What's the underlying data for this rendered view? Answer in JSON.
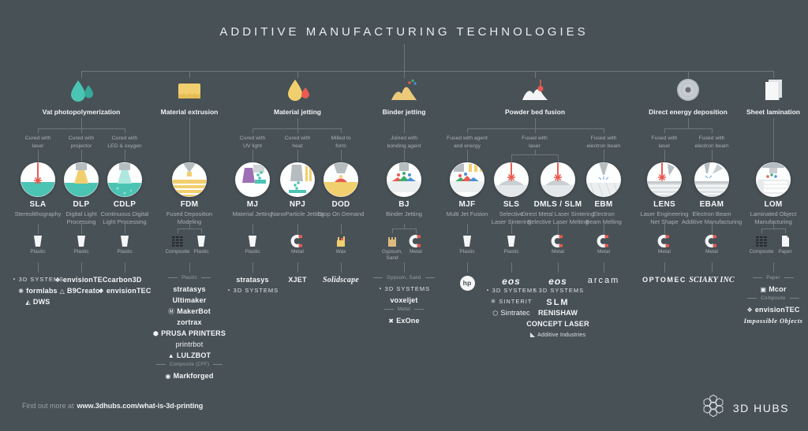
{
  "title": "ADDITIVE MANUFACTURING TECHNOLOGIES",
  "footer": {
    "prefix": "Find out more at",
    "url": "www.3dhubs.com/what-is-3d-printing",
    "brand": "3D HUBS"
  },
  "colors": {
    "background": "#485156",
    "line": "#6f777d",
    "teal": "#4cc4b4",
    "yellow": "#f2cf6e",
    "red": "#ea5a50",
    "purple": "#9d6fb5",
    "gray": "#b6bdc1",
    "white": "#fdfefe",
    "muted_text": "#a9b0b5"
  },
  "categories": [
    {
      "name": "Vat photopolymerization",
      "icon": "vat-drops",
      "branches": [
        {
          "method": "Cured with\nlaser",
          "processes": [
            {
              "abbr": "SLA",
              "full": "Stereolithography",
              "icon": "sla",
              "materials": [
                {
                  "name": "Plastic",
                  "icon": "plastic"
                }
              ],
              "brand_groups": [
                {
                  "label": null,
                  "brands": [
                    {
                      "name": "3D SYSTEMS",
                      "glyph": "◔",
                      "style": "thin"
                    },
                    {
                      "name": "formlabs",
                      "glyph": "❋"
                    },
                    {
                      "name": "DWS",
                      "glyph": "◭"
                    }
                  ]
                }
              ]
            }
          ]
        },
        {
          "method": "Cured with\nprojector",
          "processes": [
            {
              "abbr": "DLP",
              "full": "Digital Light\nProcessing",
              "icon": "dlp",
              "materials": [
                {
                  "name": "Plastic",
                  "icon": "plastic"
                }
              ],
              "brand_groups": [
                {
                  "label": null,
                  "brands": [
                    {
                      "name": "envisionTEC",
                      "glyph": "❖"
                    },
                    {
                      "name": "B9Creator",
                      "glyph": "△"
                    }
                  ]
                }
              ]
            }
          ]
        },
        {
          "method": "Cured with\nLED & oxygen",
          "processes": [
            {
              "abbr": "CDLP",
              "full": "Continuous Digital\nLight Processing",
              "icon": "cdlp",
              "materials": [
                {
                  "name": "Plastic",
                  "icon": "plastic"
                }
              ],
              "brand_groups": [
                {
                  "label": null,
                  "brands": [
                    {
                      "name": "carbon3D"
                    },
                    {
                      "name": "envisionTEC",
                      "glyph": "❖"
                    }
                  ]
                }
              ]
            }
          ]
        }
      ]
    },
    {
      "name": "Material extrusion",
      "icon": "extrusion-block",
      "branches": [
        {
          "method": null,
          "processes": [
            {
              "abbr": "FDM",
              "full": "Fused Deposition\nModeling",
              "icon": "fdm",
              "materials": [
                {
                  "name": "Composite",
                  "icon": "composite"
                },
                {
                  "name": "Plastic",
                  "icon": "plastic"
                }
              ],
              "brand_groups": [
                {
                  "label": "Plastic",
                  "brands": [
                    {
                      "name": "stratasys"
                    },
                    {
                      "name": "Ultimaker"
                    },
                    {
                      "name": "MakerBot",
                      "glyph": "Ⓜ"
                    },
                    {
                      "name": "zortrax"
                    },
                    {
                      "name": "PRUSA PRINTERS",
                      "glyph": "⬢"
                    },
                    {
                      "name": "printrbot",
                      "style": "light"
                    },
                    {
                      "name": "LULZBOT",
                      "glyph": "▲"
                    }
                  ]
                },
                {
                  "label": "Composite (CFF)",
                  "brands": [
                    {
                      "name": "Markforged",
                      "glyph": "◉"
                    }
                  ]
                }
              ]
            }
          ]
        }
      ]
    },
    {
      "name": "Material jetting",
      "icon": "jetting-drops",
      "branches": [
        {
          "method": "Cured with\nUV light",
          "processes": [
            {
              "abbr": "MJ",
              "full": "Material Jetting",
              "icon": "mj",
              "materials": [
                {
                  "name": "Plastic",
                  "icon": "plastic"
                }
              ],
              "brand_groups": [
                {
                  "label": null,
                  "brands": [
                    {
                      "name": "stratasys"
                    },
                    {
                      "name": "3D SYSTEMS",
                      "glyph": "◔",
                      "style": "thin"
                    }
                  ]
                }
              ]
            }
          ]
        },
        {
          "method": "Cured with\nheat",
          "processes": [
            {
              "abbr": "NPJ",
              "full": "NanoParticle Jetting",
              "icon": "npj",
              "materials": [
                {
                  "name": "Metal",
                  "icon": "metal"
                }
              ],
              "brand_groups": [
                {
                  "label": null,
                  "brands": [
                    {
                      "name": "XJET"
                    }
                  ]
                }
              ]
            }
          ]
        },
        {
          "method": "Milled to\nform",
          "processes": [
            {
              "abbr": "DOD",
              "full": "Drop On Demand",
              "icon": "dod",
              "materials": [
                {
                  "name": "Wax",
                  "icon": "wax"
                }
              ],
              "brand_groups": [
                {
                  "label": null,
                  "brands": [
                    {
                      "name": "Solidscape",
                      "style": "script"
                    }
                  ]
                }
              ]
            }
          ]
        }
      ]
    },
    {
      "name": "Binder jetting",
      "icon": "binder-pile",
      "branches": [
        {
          "method": "Joined with\nbonding agent",
          "processes": [
            {
              "abbr": "BJ",
              "full": "Binder Jetting",
              "icon": "bj",
              "materials": [
                {
                  "name": "Gypsum,\nSand",
                  "icon": "gypsum"
                },
                {
                  "name": "Metal",
                  "icon": "metal"
                }
              ],
              "brand_groups": [
                {
                  "label": "Gypsum, Sand",
                  "brands": [
                    {
                      "name": "3D SYSTEMS",
                      "glyph": "◔",
                      "style": "thin"
                    },
                    {
                      "name": "voxeljet"
                    }
                  ]
                },
                {
                  "label": "Metal",
                  "brands": [
                    {
                      "name": "ExOne",
                      "glyph": "✖"
                    }
                  ]
                }
              ]
            }
          ]
        }
      ]
    },
    {
      "name": "Powder bed fusion",
      "icon": "powder-pile",
      "branches": [
        {
          "method": "Fused with agent\nand energy",
          "processes": [
            {
              "abbr": "MJF",
              "full": "Multi Jet Fusion",
              "icon": "mjf",
              "materials": [
                {
                  "name": "Plastic",
                  "icon": "plastic"
                }
              ],
              "brand_groups": [
                {
                  "label": null,
                  "brands": [
                    {
                      "name": "hp",
                      "style": "badge"
                    }
                  ]
                }
              ]
            }
          ]
        },
        {
          "method": "Fused with\nlaser",
          "processes": [
            {
              "abbr": "SLS",
              "full": "Selective\nLaser Sintering",
              "icon": "sls",
              "materials": [
                {
                  "name": "Plastic",
                  "icon": "plastic"
                }
              ],
              "brand_groups": [
                {
                  "label": null,
                  "brands": [
                    {
                      "name": "eos",
                      "style": "eos"
                    },
                    {
                      "name": "3D SYSTEMS",
                      "glyph": "◔",
                      "style": "thin"
                    },
                    {
                      "name": "SINTERIT",
                      "glyph": "✳",
                      "style": "thin"
                    },
                    {
                      "name": "Sintratec",
                      "glyph": "⬡",
                      "style": "light"
                    }
                  ]
                }
              ]
            },
            {
              "abbr": "DMLS / SLM",
              "full": "Direct Metal Laser Sintering\nSelective Laser Melting",
              "icon": "dmls",
              "materials": [
                {
                  "name": "Metal",
                  "icon": "metal"
                }
              ],
              "brand_groups": [
                {
                  "label": null,
                  "brands": [
                    {
                      "name": "eos",
                      "style": "eos"
                    },
                    {
                      "name": "3D SYSTEMS",
                      "glyph": "◔",
                      "style": "thin"
                    },
                    {
                      "name": "SLM",
                      "style": "slm"
                    },
                    {
                      "name": "RENISHAW"
                    },
                    {
                      "name": "CONCEPT LASER"
                    },
                    {
                      "name": "Additive Industries",
                      "glyph": "◣",
                      "style": "small"
                    }
                  ]
                }
              ]
            }
          ]
        },
        {
          "method": "Fused with\nelectron beam",
          "processes": [
            {
              "abbr": "EBM",
              "full": "Electron\nBeam Melting",
              "icon": "ebm",
              "materials": [
                {
                  "name": "Metal",
                  "icon": "metal"
                }
              ],
              "brand_groups": [
                {
                  "label": null,
                  "brands": [
                    {
                      "name": "arcam",
                      "style": "arcam"
                    }
                  ]
                }
              ]
            }
          ]
        }
      ]
    },
    {
      "name": "Direct energy deposition",
      "icon": "metal-disc",
      "branches": [
        {
          "method": "Fused with\nlaser",
          "processes": [
            {
              "abbr": "LENS",
              "full": "Laser Engineering\nNet Shape",
              "icon": "lens",
              "materials": [
                {
                  "name": "Metal",
                  "icon": "metal"
                }
              ],
              "brand_groups": [
                {
                  "label": null,
                  "brands": [
                    {
                      "name": "OPTOMEC",
                      "style": "wide"
                    }
                  ]
                }
              ]
            }
          ]
        },
        {
          "method": "Fused with\nelectron beam",
          "processes": [
            {
              "abbr": "EBAM",
              "full": "Electron Beam\nAdditive Manufacturing",
              "icon": "ebam",
              "materials": [
                {
                  "name": "Metal",
                  "icon": "metal"
                }
              ],
              "brand_groups": [
                {
                  "label": null,
                  "brands": [
                    {
                      "name": "SCIAKY INC",
                      "style": "script"
                    }
                  ]
                }
              ]
            }
          ]
        }
      ]
    },
    {
      "name": "Sheet lamination",
      "icon": "paper-sheets",
      "branches": [
        {
          "method": null,
          "processes": [
            {
              "abbr": "LOM",
              "full": "Laminated Object\nManufacturing",
              "icon": "lom",
              "materials": [
                {
                  "name": "Composite",
                  "icon": "composite"
                },
                {
                  "name": "Paper",
                  "icon": "paper"
                }
              ],
              "brand_groups": [
                {
                  "label": "Paper",
                  "brands": [
                    {
                      "name": "Mcor",
                      "glyph": "▣"
                    }
                  ]
                },
                {
                  "label": "Composite",
                  "brands": [
                    {
                      "name": "envisionTEC",
                      "glyph": "❖"
                    },
                    {
                      "name": "Impossible Objects",
                      "style": "serif"
                    }
                  ]
                }
              ]
            }
          ]
        }
      ]
    }
  ]
}
